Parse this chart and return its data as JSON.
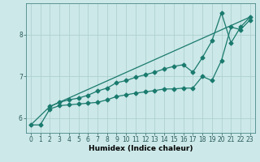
{
  "xlabel": "Humidex (Indice chaleur)",
  "bg_color": "#cce8e8",
  "line_color": "#1a7a6e",
  "grid_color": "#aacccc",
  "xlim": [
    -0.5,
    23.5
  ],
  "ylim": [
    5.65,
    8.75
  ],
  "yticks": [
    6,
    7,
    8
  ],
  "xticks": [
    0,
    1,
    2,
    3,
    4,
    5,
    6,
    7,
    8,
    9,
    10,
    11,
    12,
    13,
    14,
    15,
    16,
    17,
    18,
    19,
    20,
    21,
    22,
    23
  ],
  "series1_x": [
    0,
    1,
    2,
    3,
    4,
    5,
    6,
    7,
    8,
    9,
    10,
    11,
    12,
    13,
    14,
    15,
    16,
    17,
    18,
    19,
    20,
    21,
    22,
    23
  ],
  "series1_y": [
    5.84,
    5.84,
    6.22,
    6.3,
    6.32,
    6.34,
    6.36,
    6.38,
    6.44,
    6.52,
    6.56,
    6.6,
    6.63,
    6.66,
    6.7,
    6.7,
    6.72,
    6.72,
    7.0,
    6.9,
    7.38,
    8.18,
    8.12,
    8.35
  ],
  "series2_x": [
    2,
    3,
    4,
    5,
    6,
    7,
    8,
    9,
    10,
    11,
    12,
    13,
    14,
    15,
    16,
    17,
    18,
    19,
    20,
    21,
    22,
    23
  ],
  "series2_y": [
    6.28,
    6.38,
    6.44,
    6.48,
    6.55,
    6.65,
    6.72,
    6.85,
    6.9,
    6.98,
    7.04,
    7.1,
    7.18,
    7.24,
    7.28,
    7.1,
    7.45,
    7.85,
    8.52,
    7.8,
    8.18,
    8.42
  ],
  "series3_x": [
    0,
    2,
    23
  ],
  "series3_y": [
    5.84,
    6.28,
    8.42
  ],
  "markersize": 2.5,
  "linewidth": 0.9
}
